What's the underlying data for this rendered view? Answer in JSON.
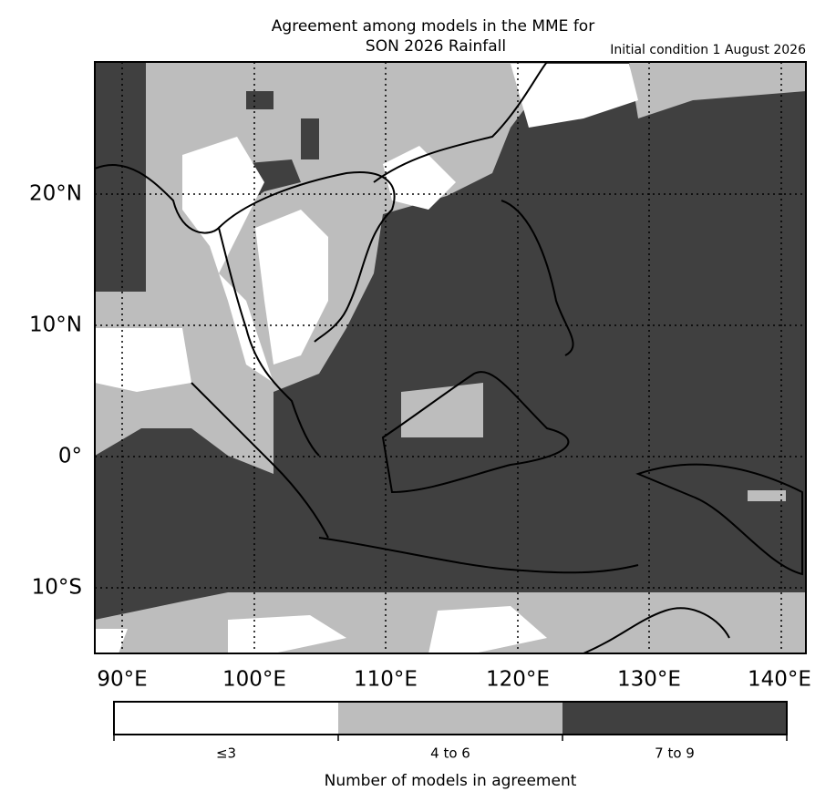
{
  "title": [
    "Agreement among models in the MME for",
    "SON 2026  Rainfall"
  ],
  "subtitle": "Initial condition 1 August 2026",
  "lat_labels": [
    "20°N",
    "10°N",
    "0°",
    "10°S"
  ],
  "lon_labels": [
    "90°E",
    "100°E",
    "110°E",
    "120°E",
    "130°E",
    "140°E"
  ],
  "legend": {
    "title": "Number of models in agreement",
    "classes": [
      {
        "label": "≤3",
        "color": "#ffffff"
      },
      {
        "label": "4 to 6",
        "color": "#bdbdbd"
      },
      {
        "label": "7 to 9",
        "color": "#404040"
      }
    ]
  }
}
